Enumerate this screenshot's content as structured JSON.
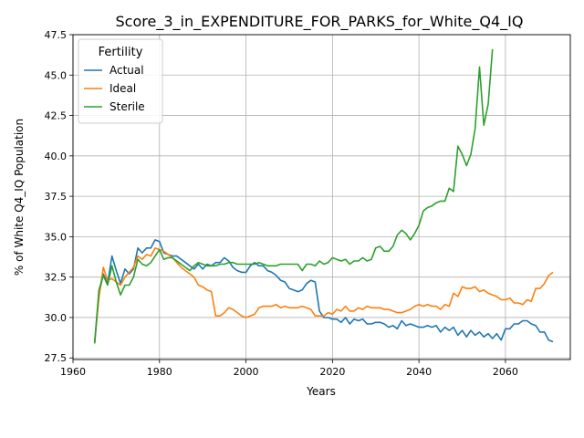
{
  "chart_data": {
    "type": "line",
    "title": "Score_3_in_EXPENDITURE_FOR_PARKS_for_White_Q4_IQ",
    "xlabel": "Years",
    "ylabel": "% of White Q4_IQ Population",
    "xlim": [
      1960,
      2075
    ],
    "ylim": [
      27.4,
      47.5
    ],
    "xticks": [
      1960,
      1980,
      2000,
      2020,
      2040,
      2060
    ],
    "yticks": [
      27.5,
      30.0,
      32.5,
      35.0,
      37.5,
      40.0,
      42.5,
      45.0,
      47.5
    ],
    "grid": true,
    "legend": {
      "title": "Fertility",
      "placement": "upper-left"
    },
    "series": [
      {
        "name": "Actual",
        "color": "#1f77b4",
        "points": [
          [
            1965,
            28.4
          ],
          [
            1966,
            31.4
          ],
          [
            1967,
            32.7
          ],
          [
            1968,
            32.1
          ],
          [
            1969,
            33.8
          ],
          [
            1970,
            32.9
          ],
          [
            1971,
            32.1
          ],
          [
            1972,
            33.0
          ],
          [
            1973,
            32.7
          ],
          [
            1974,
            33.0
          ],
          [
            1975,
            34.3
          ],
          [
            1976,
            34.0
          ],
          [
            1977,
            34.3
          ],
          [
            1978,
            34.3
          ],
          [
            1979,
            34.8
          ],
          [
            1980,
            34.7
          ],
          [
            1981,
            34.0
          ],
          [
            1982,
            33.9
          ],
          [
            1983,
            33.8
          ],
          [
            1984,
            33.8
          ],
          [
            1985,
            33.6
          ],
          [
            1986,
            33.4
          ],
          [
            1987,
            33.2
          ],
          [
            1988,
            33.0
          ],
          [
            1989,
            33.3
          ],
          [
            1990,
            33.0
          ],
          [
            1991,
            33.3
          ],
          [
            1992,
            33.2
          ],
          [
            1993,
            33.4
          ],
          [
            1994,
            33.4
          ],
          [
            1995,
            33.7
          ],
          [
            1996,
            33.5
          ],
          [
            1997,
            33.1
          ],
          [
            1998,
            32.9
          ],
          [
            1999,
            32.8
          ],
          [
            2000,
            32.8
          ],
          [
            2001,
            33.2
          ],
          [
            2002,
            33.4
          ],
          [
            2003,
            33.2
          ],
          [
            2004,
            33.2
          ],
          [
            2005,
            32.9
          ],
          [
            2006,
            32.8
          ],
          [
            2007,
            32.6
          ],
          [
            2008,
            32.3
          ],
          [
            2009,
            32.2
          ],
          [
            2010,
            31.8
          ],
          [
            2011,
            31.7
          ],
          [
            2012,
            31.6
          ],
          [
            2013,
            31.7
          ],
          [
            2014,
            32.1
          ],
          [
            2015,
            32.3
          ],
          [
            2016,
            32.2
          ],
          [
            2017,
            30.4
          ],
          [
            2018,
            30.0
          ],
          [
            2019,
            30.0
          ],
          [
            2020,
            29.9
          ],
          [
            2021,
            29.9
          ],
          [
            2022,
            29.7
          ],
          [
            2023,
            30.0
          ],
          [
            2024,
            29.6
          ],
          [
            2025,
            29.9
          ],
          [
            2026,
            29.8
          ],
          [
            2027,
            29.9
          ],
          [
            2028,
            29.6
          ],
          [
            2029,
            29.6
          ],
          [
            2030,
            29.7
          ],
          [
            2031,
            29.7
          ],
          [
            2032,
            29.6
          ],
          [
            2033,
            29.4
          ],
          [
            2034,
            29.5
          ],
          [
            2035,
            29.3
          ],
          [
            2036,
            29.8
          ],
          [
            2037,
            29.5
          ],
          [
            2038,
            29.6
          ],
          [
            2039,
            29.5
          ],
          [
            2040,
            29.4
          ],
          [
            2041,
            29.4
          ],
          [
            2042,
            29.5
          ],
          [
            2043,
            29.4
          ],
          [
            2044,
            29.5
          ],
          [
            2045,
            29.1
          ],
          [
            2046,
            29.4
          ],
          [
            2047,
            29.2
          ],
          [
            2048,
            29.4
          ],
          [
            2049,
            28.9
          ],
          [
            2050,
            29.2
          ],
          [
            2051,
            28.8
          ],
          [
            2052,
            29.2
          ],
          [
            2053,
            28.9
          ],
          [
            2054,
            29.1
          ],
          [
            2055,
            28.8
          ],
          [
            2056,
            29.0
          ],
          [
            2057,
            28.7
          ],
          [
            2058,
            29.0
          ],
          [
            2059,
            28.6
          ],
          [
            2060,
            29.3
          ],
          [
            2061,
            29.3
          ],
          [
            2062,
            29.6
          ],
          [
            2063,
            29.6
          ],
          [
            2064,
            29.8
          ],
          [
            2065,
            29.8
          ],
          [
            2066,
            29.6
          ],
          [
            2067,
            29.5
          ],
          [
            2068,
            29.1
          ],
          [
            2069,
            29.1
          ],
          [
            2070,
            28.6
          ],
          [
            2071,
            28.5
          ]
        ]
      },
      {
        "name": "Ideal",
        "color": "#ff7f0e",
        "points": [
          [
            1965,
            28.5
          ],
          [
            1966,
            31.2
          ],
          [
            1967,
            33.1
          ],
          [
            1968,
            32.3
          ],
          [
            1969,
            32.4
          ],
          [
            1970,
            32.2
          ],
          [
            1971,
            32.0
          ],
          [
            1972,
            32.5
          ],
          [
            1973,
            32.8
          ],
          [
            1974,
            33.1
          ],
          [
            1975,
            33.8
          ],
          [
            1976,
            33.6
          ],
          [
            1977,
            33.9
          ],
          [
            1978,
            33.8
          ],
          [
            1979,
            34.3
          ],
          [
            1980,
            34.2
          ],
          [
            1981,
            34.1
          ],
          [
            1982,
            33.9
          ],
          [
            1983,
            33.7
          ],
          [
            1984,
            33.4
          ],
          [
            1985,
            33.1
          ],
          [
            1986,
            32.9
          ],
          [
            1987,
            32.7
          ],
          [
            1988,
            32.5
          ],
          [
            1989,
            32.0
          ],
          [
            1990,
            31.9
          ],
          [
            1991,
            31.7
          ],
          [
            1992,
            31.6
          ],
          [
            1993,
            30.1
          ],
          [
            1994,
            30.1
          ],
          [
            1995,
            30.3
          ],
          [
            1996,
            30.6
          ],
          [
            1997,
            30.5
          ],
          [
            1998,
            30.3
          ],
          [
            1999,
            30.1
          ],
          [
            2000,
            30.0
          ],
          [
            2001,
            30.1
          ],
          [
            2002,
            30.2
          ],
          [
            2003,
            30.6
          ],
          [
            2004,
            30.7
          ],
          [
            2005,
            30.7
          ],
          [
            2006,
            30.7
          ],
          [
            2007,
            30.8
          ],
          [
            2008,
            30.6
          ],
          [
            2009,
            30.7
          ],
          [
            2010,
            30.6
          ],
          [
            2011,
            30.6
          ],
          [
            2012,
            30.6
          ],
          [
            2013,
            30.7
          ],
          [
            2014,
            30.6
          ],
          [
            2015,
            30.5
          ],
          [
            2016,
            30.1
          ],
          [
            2017,
            30.1
          ],
          [
            2018,
            30.1
          ],
          [
            2019,
            30.3
          ],
          [
            2020,
            30.2
          ],
          [
            2021,
            30.5
          ],
          [
            2022,
            30.4
          ],
          [
            2023,
            30.7
          ],
          [
            2024,
            30.4
          ],
          [
            2025,
            30.4
          ],
          [
            2026,
            30.6
          ],
          [
            2027,
            30.5
          ],
          [
            2028,
            30.7
          ],
          [
            2029,
            30.6
          ],
          [
            2030,
            30.6
          ],
          [
            2031,
            30.6
          ],
          [
            2032,
            30.5
          ],
          [
            2033,
            30.5
          ],
          [
            2034,
            30.4
          ],
          [
            2035,
            30.3
          ],
          [
            2036,
            30.3
          ],
          [
            2037,
            30.4
          ],
          [
            2038,
            30.5
          ],
          [
            2039,
            30.7
          ],
          [
            2040,
            30.8
          ],
          [
            2041,
            30.7
          ],
          [
            2042,
            30.8
          ],
          [
            2043,
            30.7
          ],
          [
            2044,
            30.7
          ],
          [
            2045,
            30.5
          ],
          [
            2046,
            30.8
          ],
          [
            2047,
            30.7
          ],
          [
            2048,
            31.5
          ],
          [
            2049,
            31.3
          ],
          [
            2050,
            31.9
          ],
          [
            2051,
            31.8
          ],
          [
            2052,
            31.8
          ],
          [
            2053,
            31.9
          ],
          [
            2054,
            31.6
          ],
          [
            2055,
            31.7
          ],
          [
            2056,
            31.5
          ],
          [
            2057,
            31.4
          ],
          [
            2058,
            31.3
          ],
          [
            2059,
            31.1
          ],
          [
            2060,
            31.1
          ],
          [
            2061,
            31.2
          ],
          [
            2062,
            30.9
          ],
          [
            2063,
            30.9
          ],
          [
            2064,
            30.8
          ],
          [
            2065,
            31.1
          ],
          [
            2066,
            31.0
          ],
          [
            2067,
            31.8
          ],
          [
            2068,
            31.8
          ],
          [
            2069,
            32.1
          ],
          [
            2070,
            32.6
          ],
          [
            2071,
            32.8
          ]
        ]
      },
      {
        "name": "Sterile",
        "color": "#2ca02c",
        "points": [
          [
            1965,
            28.4
          ],
          [
            1966,
            31.7
          ],
          [
            1967,
            32.6
          ],
          [
            1968,
            32.0
          ],
          [
            1969,
            33.2
          ],
          [
            1970,
            32.2
          ],
          [
            1971,
            31.4
          ],
          [
            1972,
            32.0
          ],
          [
            1973,
            32.0
          ],
          [
            1974,
            32.5
          ],
          [
            1975,
            33.6
          ],
          [
            1976,
            33.3
          ],
          [
            1977,
            33.2
          ],
          [
            1978,
            33.4
          ],
          [
            1979,
            33.8
          ],
          [
            1980,
            34.2
          ],
          [
            1981,
            33.6
          ],
          [
            1982,
            33.7
          ],
          [
            1983,
            33.7
          ],
          [
            1984,
            33.5
          ],
          [
            1985,
            33.3
          ],
          [
            1986,
            33.1
          ],
          [
            1987,
            32.9
          ],
          [
            1988,
            33.2
          ],
          [
            1989,
            33.4
          ],
          [
            1990,
            33.3
          ],
          [
            1991,
            33.2
          ],
          [
            1992,
            33.2
          ],
          [
            1993,
            33.2
          ],
          [
            1994,
            33.3
          ],
          [
            1995,
            33.3
          ],
          [
            1996,
            33.4
          ],
          [
            1997,
            33.4
          ],
          [
            1998,
            33.3
          ],
          [
            1999,
            33.3
          ],
          [
            2000,
            33.3
          ],
          [
            2001,
            33.3
          ],
          [
            2002,
            33.3
          ],
          [
            2003,
            33.4
          ],
          [
            2004,
            33.3
          ],
          [
            2005,
            33.2
          ],
          [
            2006,
            33.2
          ],
          [
            2007,
            33.2
          ],
          [
            2008,
            33.3
          ],
          [
            2009,
            33.3
          ],
          [
            2010,
            33.3
          ],
          [
            2011,
            33.3
          ],
          [
            2012,
            33.3
          ],
          [
            2013,
            32.9
          ],
          [
            2014,
            33.3
          ],
          [
            2015,
            33.3
          ],
          [
            2016,
            33.2
          ],
          [
            2017,
            33.5
          ],
          [
            2018,
            33.3
          ],
          [
            2019,
            33.4
          ],
          [
            2020,
            33.7
          ],
          [
            2021,
            33.6
          ],
          [
            2022,
            33.5
          ],
          [
            2023,
            33.6
          ],
          [
            2024,
            33.3
          ],
          [
            2025,
            33.5
          ],
          [
            2026,
            33.5
          ],
          [
            2027,
            33.7
          ],
          [
            2028,
            33.5
          ],
          [
            2029,
            33.6
          ],
          [
            2030,
            34.3
          ],
          [
            2031,
            34.4
          ],
          [
            2032,
            34.1
          ],
          [
            2033,
            34.1
          ],
          [
            2034,
            34.4
          ],
          [
            2035,
            35.1
          ],
          [
            2036,
            35.4
          ],
          [
            2037,
            35.2
          ],
          [
            2038,
            34.8
          ],
          [
            2039,
            35.2
          ],
          [
            2040,
            35.7
          ],
          [
            2041,
            36.6
          ],
          [
            2042,
            36.8
          ],
          [
            2043,
            36.9
          ],
          [
            2044,
            37.1
          ],
          [
            2045,
            37.2
          ],
          [
            2046,
            37.2
          ],
          [
            2047,
            38.0
          ],
          [
            2048,
            37.8
          ],
          [
            2049,
            40.6
          ],
          [
            2050,
            40.1
          ],
          [
            2051,
            39.4
          ],
          [
            2052,
            40.1
          ],
          [
            2053,
            41.7
          ],
          [
            2054,
            45.5
          ],
          [
            2055,
            41.9
          ],
          [
            2056,
            43.2
          ],
          [
            2057,
            46.6
          ]
        ]
      }
    ]
  }
}
